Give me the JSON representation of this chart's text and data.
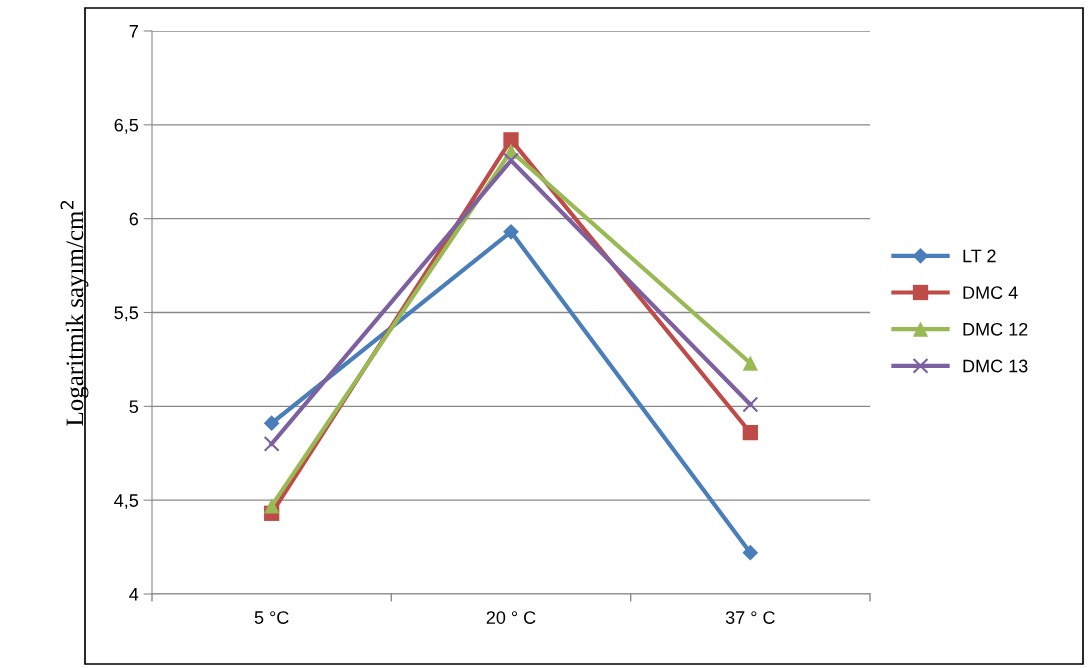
{
  "chart_data": {
    "type": "line",
    "ylabel": "Logaritmik sayım/cm$^{2}$",
    "categories": [
      "5 °C",
      "20 ° C",
      "37 ° C"
    ],
    "series": [
      {
        "name": "LT 2",
        "color": "#4a7ebb",
        "marker": "diamond",
        "values": [
          4.91,
          5.93,
          4.22
        ]
      },
      {
        "name": "DMC 4",
        "color": "#be4b48",
        "marker": "square",
        "values": [
          4.43,
          6.42,
          4.86
        ]
      },
      {
        "name": "DMC 12",
        "color": "#98b954",
        "marker": "triangle",
        "values": [
          4.47,
          6.36,
          5.23
        ]
      },
      {
        "name": "DMC 13",
        "color": "#7d60a0",
        "marker": "cross",
        "values": [
          4.8,
          6.31,
          5.01
        ]
      }
    ],
    "ylim": [
      4,
      7
    ],
    "yticks": [
      4,
      {
        "value": 4.5,
        "label": "4,5"
      },
      5,
      {
        "value": 5.5,
        "label": "5,5"
      },
      6,
      {
        "value": 6.5,
        "label": "6,5"
      },
      7
    ],
    "grid": "y",
    "legend": "right",
    "line_style": "solid"
  }
}
